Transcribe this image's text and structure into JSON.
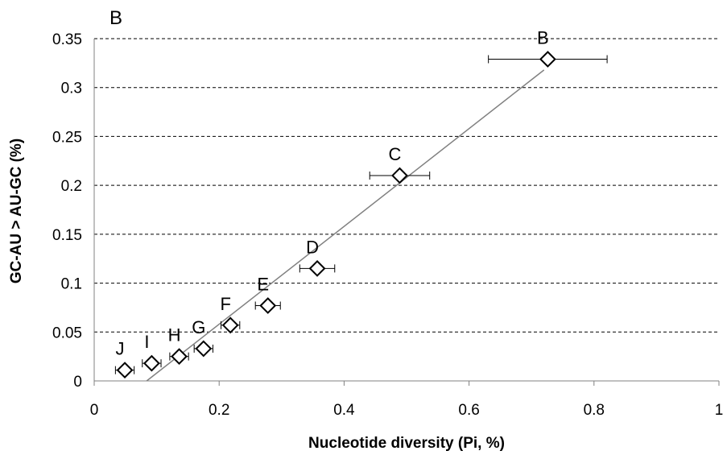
{
  "chart_data": {
    "type": "scatter",
    "panel_label": "B",
    "xlabel": "Nucleotide diversity (Pi, %)",
    "ylabel": "GC-AU > AU-GC (%)",
    "xlim": [
      0,
      1
    ],
    "ylim": [
      0,
      0.35
    ],
    "x_ticks": [
      "0",
      "0.2",
      "0.4",
      "0.6",
      "0.8",
      "1"
    ],
    "y_ticks": [
      "0",
      "0.05",
      "0.1",
      "0.15",
      "0.2",
      "0.25",
      "0.3",
      "0.35"
    ],
    "grid": "horizontal dashed",
    "legend": "none",
    "marker": "diamond",
    "colors": {
      "marker": "#000000",
      "trendline": "#808080",
      "grid": "#000000"
    },
    "points": [
      {
        "label": "J",
        "x": 0.049,
        "y": 0.011,
        "x_err": 0.015
      },
      {
        "label": "I",
        "x": 0.092,
        "y": 0.018,
        "x_err": 0.015
      },
      {
        "label": "H",
        "x": 0.136,
        "y": 0.025,
        "x_err": 0.015
      },
      {
        "label": "G",
        "x": 0.175,
        "y": 0.033,
        "x_err": 0.015
      },
      {
        "label": "F",
        "x": 0.218,
        "y": 0.057,
        "x_err": 0.015
      },
      {
        "label": "E",
        "x": 0.278,
        "y": 0.077,
        "x_err": 0.02
      },
      {
        "label": "D",
        "x": 0.357,
        "y": 0.115,
        "x_err": 0.028
      },
      {
        "label": "C",
        "x": 0.489,
        "y": 0.21,
        "x_err": 0.048
      },
      {
        "label": "B",
        "x": 0.726,
        "y": 0.329,
        "x_err": 0.095
      }
    ],
    "trendline": {
      "x": [
        0.084,
        0.72
      ],
      "y": [
        0,
        0.318
      ]
    }
  }
}
